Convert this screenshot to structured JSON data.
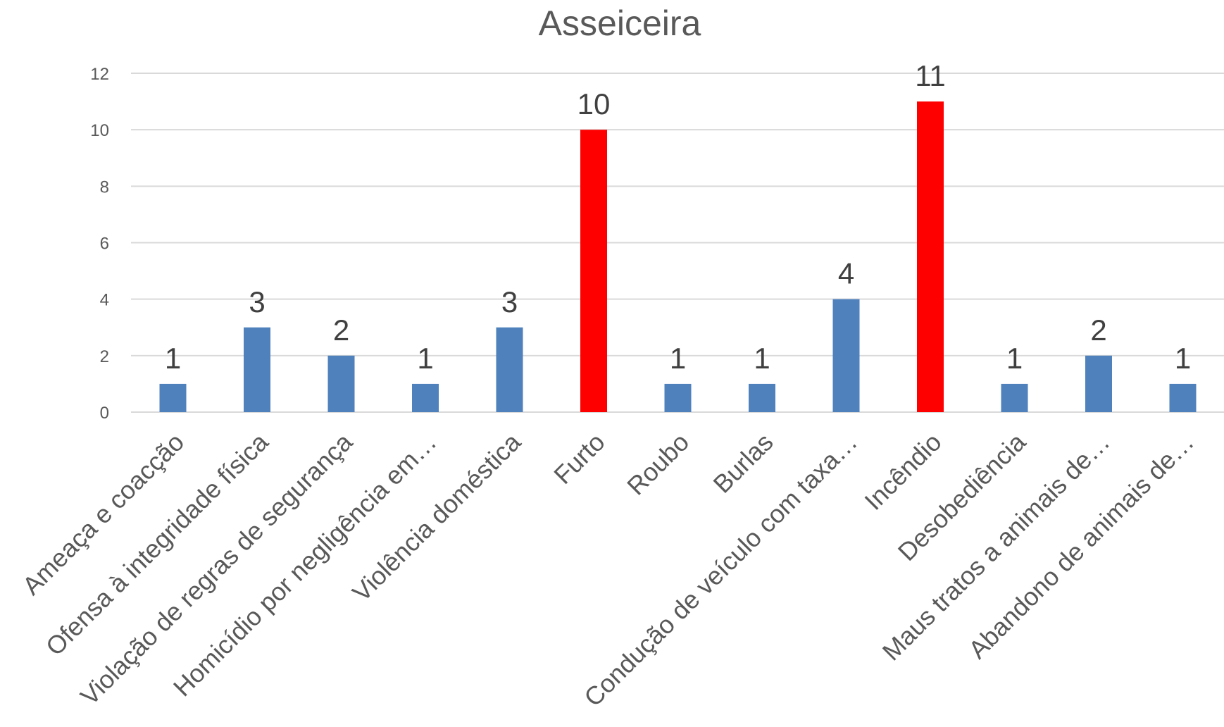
{
  "chart_data": {
    "type": "bar",
    "title": "Asseiceira",
    "xlabel": "",
    "ylabel": "",
    "ylim": [
      0,
      12
    ],
    "yticks": [
      "0",
      "2",
      "4",
      "6",
      "8",
      "10",
      "12"
    ],
    "grid": true,
    "legend": "none",
    "categories": [
      "Ameaça e coacção",
      "Ofensa à integridade física",
      "Violação de regras de segurança",
      "Homicídio por negligência em…",
      "Violência doméstica",
      "Furto",
      "Roubo",
      "Burlas",
      "Condução de veículo com taxa…",
      "Incêndio",
      "Desobediência",
      "Maus tratos a animais de…",
      "Abandono de animais de…"
    ],
    "values": [
      1,
      3,
      2,
      1,
      3,
      10,
      1,
      1,
      4,
      11,
      1,
      2,
      1
    ],
    "colors": {
      "default": "#4f81bd",
      "highlight": "#ff0000"
    },
    "highlighted": [
      "Furto",
      "Incêndio"
    ]
  }
}
